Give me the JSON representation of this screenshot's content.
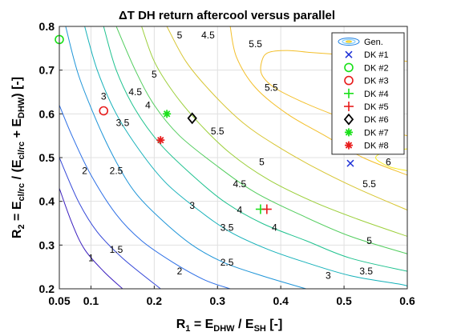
{
  "chart_data": {
    "type": "contour",
    "title": "ΔT DH return aftercool versus parallel",
    "xlabel": {
      "main": "R",
      "sub1": "1",
      "eq": " = E",
      "sub2": "DHW",
      "sep": " / E",
      "sub3": "SH",
      "unit": " [-]"
    },
    "ylabel": {
      "main": "R",
      "sub1": "2",
      "eq": " = E",
      "sub2": "cl/rc",
      "mid": " / (E",
      "sub3": "cl/rc",
      "plus": " + E",
      "sub4": "DHW",
      "close": ") [-]"
    },
    "xlim": [
      0.05,
      0.6
    ],
    "ylim": [
      0.2,
      0.8
    ],
    "xticks": [
      0.05,
      0.1,
      0.2,
      0.3,
      0.4,
      0.5,
      0.6
    ],
    "xtick_labels": [
      "0.05",
      "0.1",
      "0.2",
      "0.3",
      "0.4",
      "0.5",
      "0.6"
    ],
    "yticks": [
      0.2,
      0.3,
      0.4,
      0.5,
      0.6,
      0.7,
      0.8
    ],
    "ytick_labels": [
      "0.2",
      "0.3",
      "0.4",
      "0.5",
      "0.6",
      "0.7",
      "0.8"
    ],
    "grid": true,
    "legend_position": "top-right",
    "contour_levels": [
      {
        "level": 1,
        "label": "1",
        "color": "#3b1fbf",
        "points": [
          [
            0.05,
            0.43
          ],
          [
            0.07,
            0.35
          ],
          [
            0.09,
            0.29
          ],
          [
            0.12,
            0.24
          ],
          [
            0.15,
            0.2
          ]
        ]
      },
      {
        "level": 1.5,
        "label": "1.5",
        "color": "#3548d8",
        "points": [
          [
            0.05,
            0.5
          ],
          [
            0.08,
            0.4
          ],
          [
            0.11,
            0.33
          ],
          [
            0.15,
            0.27
          ],
          [
            0.21,
            0.2
          ]
        ]
      },
      {
        "level": 2,
        "label": "2",
        "color": "#2d6fe6",
        "points": [
          [
            0.05,
            0.62
          ],
          [
            0.07,
            0.55
          ],
          [
            0.1,
            0.46
          ],
          [
            0.14,
            0.37
          ],
          [
            0.18,
            0.31
          ],
          [
            0.23,
            0.26
          ],
          [
            0.28,
            0.22
          ],
          [
            0.32,
            0.2
          ]
        ]
      },
      {
        "level": 2.5,
        "label": "2.5",
        "color": "#1f95d8",
        "points": [
          [
            0.06,
            0.8
          ],
          [
            0.08,
            0.69
          ],
          [
            0.11,
            0.58
          ],
          [
            0.14,
            0.49
          ],
          [
            0.17,
            0.42
          ],
          [
            0.21,
            0.36
          ],
          [
            0.26,
            0.3
          ],
          [
            0.31,
            0.26
          ],
          [
            0.37,
            0.23
          ],
          [
            0.44,
            0.2
          ]
        ]
      },
      {
        "level": 3,
        "label": "3",
        "color": "#15b1b9",
        "points": [
          [
            0.09,
            0.8
          ],
          [
            0.11,
            0.7
          ],
          [
            0.14,
            0.6
          ],
          [
            0.18,
            0.51
          ],
          [
            0.22,
            0.44
          ],
          [
            0.27,
            0.38
          ],
          [
            0.32,
            0.33
          ],
          [
            0.38,
            0.29
          ],
          [
            0.44,
            0.26
          ],
          [
            0.51,
            0.23
          ],
          [
            0.59,
            0.21
          ],
          [
            0.6,
            0.205
          ]
        ]
      },
      {
        "level": 3.5,
        "label": "3.5",
        "color": "#1fc28f",
        "points": [
          [
            0.12,
            0.8
          ],
          [
            0.14,
            0.7
          ],
          [
            0.17,
            0.61
          ],
          [
            0.21,
            0.53
          ],
          [
            0.26,
            0.46
          ],
          [
            0.31,
            0.4
          ],
          [
            0.37,
            0.35
          ],
          [
            0.44,
            0.31
          ],
          [
            0.51,
            0.27
          ],
          [
            0.6,
            0.24
          ]
        ]
      },
      {
        "level": 4,
        "label": "4",
        "color": "#52cd5e",
        "points": [
          [
            0.14,
            0.8
          ],
          [
            0.17,
            0.7
          ],
          [
            0.2,
            0.62
          ],
          [
            0.24,
            0.55
          ],
          [
            0.3,
            0.48
          ],
          [
            0.36,
            0.42
          ],
          [
            0.43,
            0.37
          ],
          [
            0.51,
            0.32
          ],
          [
            0.6,
            0.28
          ]
        ]
      },
      {
        "level": 4.5,
        "label": "4.5",
        "color": "#9ccf3a",
        "points": [
          [
            0.18,
            0.8
          ],
          [
            0.2,
            0.72
          ],
          [
            0.23,
            0.65
          ],
          [
            0.27,
            0.58
          ],
          [
            0.32,
            0.51
          ],
          [
            0.38,
            0.45
          ],
          [
            0.45,
            0.4
          ],
          [
            0.52,
            0.36
          ],
          [
            0.6,
            0.32
          ]
        ]
      },
      {
        "level": 5,
        "label": "5",
        "color": "#d7c532",
        "points": [
          [
            0.22,
            0.8
          ],
          [
            0.25,
            0.72
          ],
          [
            0.29,
            0.65
          ],
          [
            0.34,
            0.58
          ],
          [
            0.39,
            0.53
          ],
          [
            0.45,
            0.48
          ],
          [
            0.52,
            0.43
          ],
          [
            0.6,
            0.38
          ]
        ]
      },
      {
        "level": 5.5,
        "label": "5.5",
        "color": "#f3bf2a",
        "points": [
          [
            0.32,
            0.8
          ],
          [
            0.33,
            0.73
          ],
          [
            0.36,
            0.66
          ],
          [
            0.41,
            0.6
          ],
          [
            0.47,
            0.55
          ],
          [
            0.53,
            0.5
          ],
          [
            0.6,
            0.46
          ]
        ]
      },
      {
        "level": 5.5,
        "label": "",
        "color": "#f3bf2a",
        "points": [
          [
            0.6,
            0.72
          ],
          [
            0.55,
            0.73
          ],
          [
            0.5,
            0.735
          ],
          [
            0.45,
            0.74
          ],
          [
            0.41,
            0.745
          ],
          [
            0.38,
            0.74
          ],
          [
            0.37,
            0.72
          ],
          [
            0.37,
            0.69
          ],
          [
            0.39,
            0.66
          ],
          [
            0.43,
            0.63
          ],
          [
            0.48,
            0.6
          ],
          [
            0.53,
            0.575
          ],
          [
            0.6,
            0.55
          ]
        ]
      },
      {
        "level": 6,
        "label": "6",
        "color": "#f9ea16",
        "points": [
          [
            0.6,
            0.52
          ],
          [
            0.57,
            0.515
          ],
          [
            0.55,
            0.5
          ],
          [
            0.57,
            0.48
          ],
          [
            0.6,
            0.47
          ]
        ]
      }
    ],
    "contour_labels": [
      {
        "text": "1",
        "x": 0.1,
        "y": 0.27
      },
      {
        "text": "1.5",
        "x": 0.14,
        "y": 0.29
      },
      {
        "text": "2",
        "x": 0.09,
        "y": 0.47
      },
      {
        "text": "2",
        "x": 0.24,
        "y": 0.24
      },
      {
        "text": "2.5",
        "x": 0.14,
        "y": 0.47
      },
      {
        "text": "2.5",
        "x": 0.315,
        "y": 0.26
      },
      {
        "text": "3",
        "x": 0.12,
        "y": 0.64
      },
      {
        "text": "3",
        "x": 0.26,
        "y": 0.39
      },
      {
        "text": "3",
        "x": 0.475,
        "y": 0.23
      },
      {
        "text": "3.5",
        "x": 0.15,
        "y": 0.58
      },
      {
        "text": "3.5",
        "x": 0.315,
        "y": 0.34
      },
      {
        "text": "3.5",
        "x": 0.535,
        "y": 0.24
      },
      {
        "text": "4",
        "x": 0.19,
        "y": 0.62
      },
      {
        "text": "4",
        "x": 0.335,
        "y": 0.38
      },
      {
        "text": "4",
        "x": 0.39,
        "y": 0.34
      },
      {
        "text": "4.5",
        "x": 0.17,
        "y": 0.65
      },
      {
        "text": "4.5",
        "x": 0.285,
        "y": 0.78
      },
      {
        "text": "4.5",
        "x": 0.335,
        "y": 0.44
      },
      {
        "text": "5",
        "x": 0.2,
        "y": 0.69
      },
      {
        "text": "5",
        "x": 0.24,
        "y": 0.78
      },
      {
        "text": "5",
        "x": 0.37,
        "y": 0.49
      },
      {
        "text": "5",
        "x": 0.54,
        "y": 0.31
      },
      {
        "text": "5.5",
        "x": 0.36,
        "y": 0.76
      },
      {
        "text": "5.5",
        "x": 0.385,
        "y": 0.66
      },
      {
        "text": "5.5",
        "x": 0.3,
        "y": 0.56
      },
      {
        "text": "5.5",
        "x": 0.54,
        "y": 0.44
      },
      {
        "text": "6",
        "x": 0.57,
        "y": 0.49
      }
    ],
    "series": [
      {
        "name": "Gen.",
        "marker": "ellipse",
        "color": "#1f7fe0",
        "points": []
      },
      {
        "name": "DK #1",
        "marker": "x",
        "color": "#1c2fd6",
        "points": [
          [
            0.51,
            0.487
          ]
        ]
      },
      {
        "name": "DK #2",
        "marker": "circle",
        "color": "#19e019",
        "points": [
          [
            0.05,
            0.77
          ]
        ]
      },
      {
        "name": "DK #3",
        "marker": "circle",
        "color": "#e81c1c",
        "points": [
          [
            0.12,
            0.607
          ]
        ]
      },
      {
        "name": "DK #4",
        "marker": "plus",
        "color": "#19e019",
        "points": [
          [
            0.368,
            0.382
          ]
        ]
      },
      {
        "name": "DK #5",
        "marker": "plus",
        "color": "#e81c1c",
        "points": [
          [
            0.378,
            0.382
          ]
        ]
      },
      {
        "name": "DK #6",
        "marker": "diamond",
        "color": "#000000",
        "points": [
          [
            0.26,
            0.59
          ]
        ]
      },
      {
        "name": "DK #7",
        "marker": "asterisk",
        "color": "#19e019",
        "points": [
          [
            0.22,
            0.6
          ]
        ]
      },
      {
        "name": "DK #8",
        "marker": "asterisk",
        "color": "#e81c1c",
        "points": [
          [
            0.21,
            0.54
          ]
        ]
      }
    ]
  }
}
